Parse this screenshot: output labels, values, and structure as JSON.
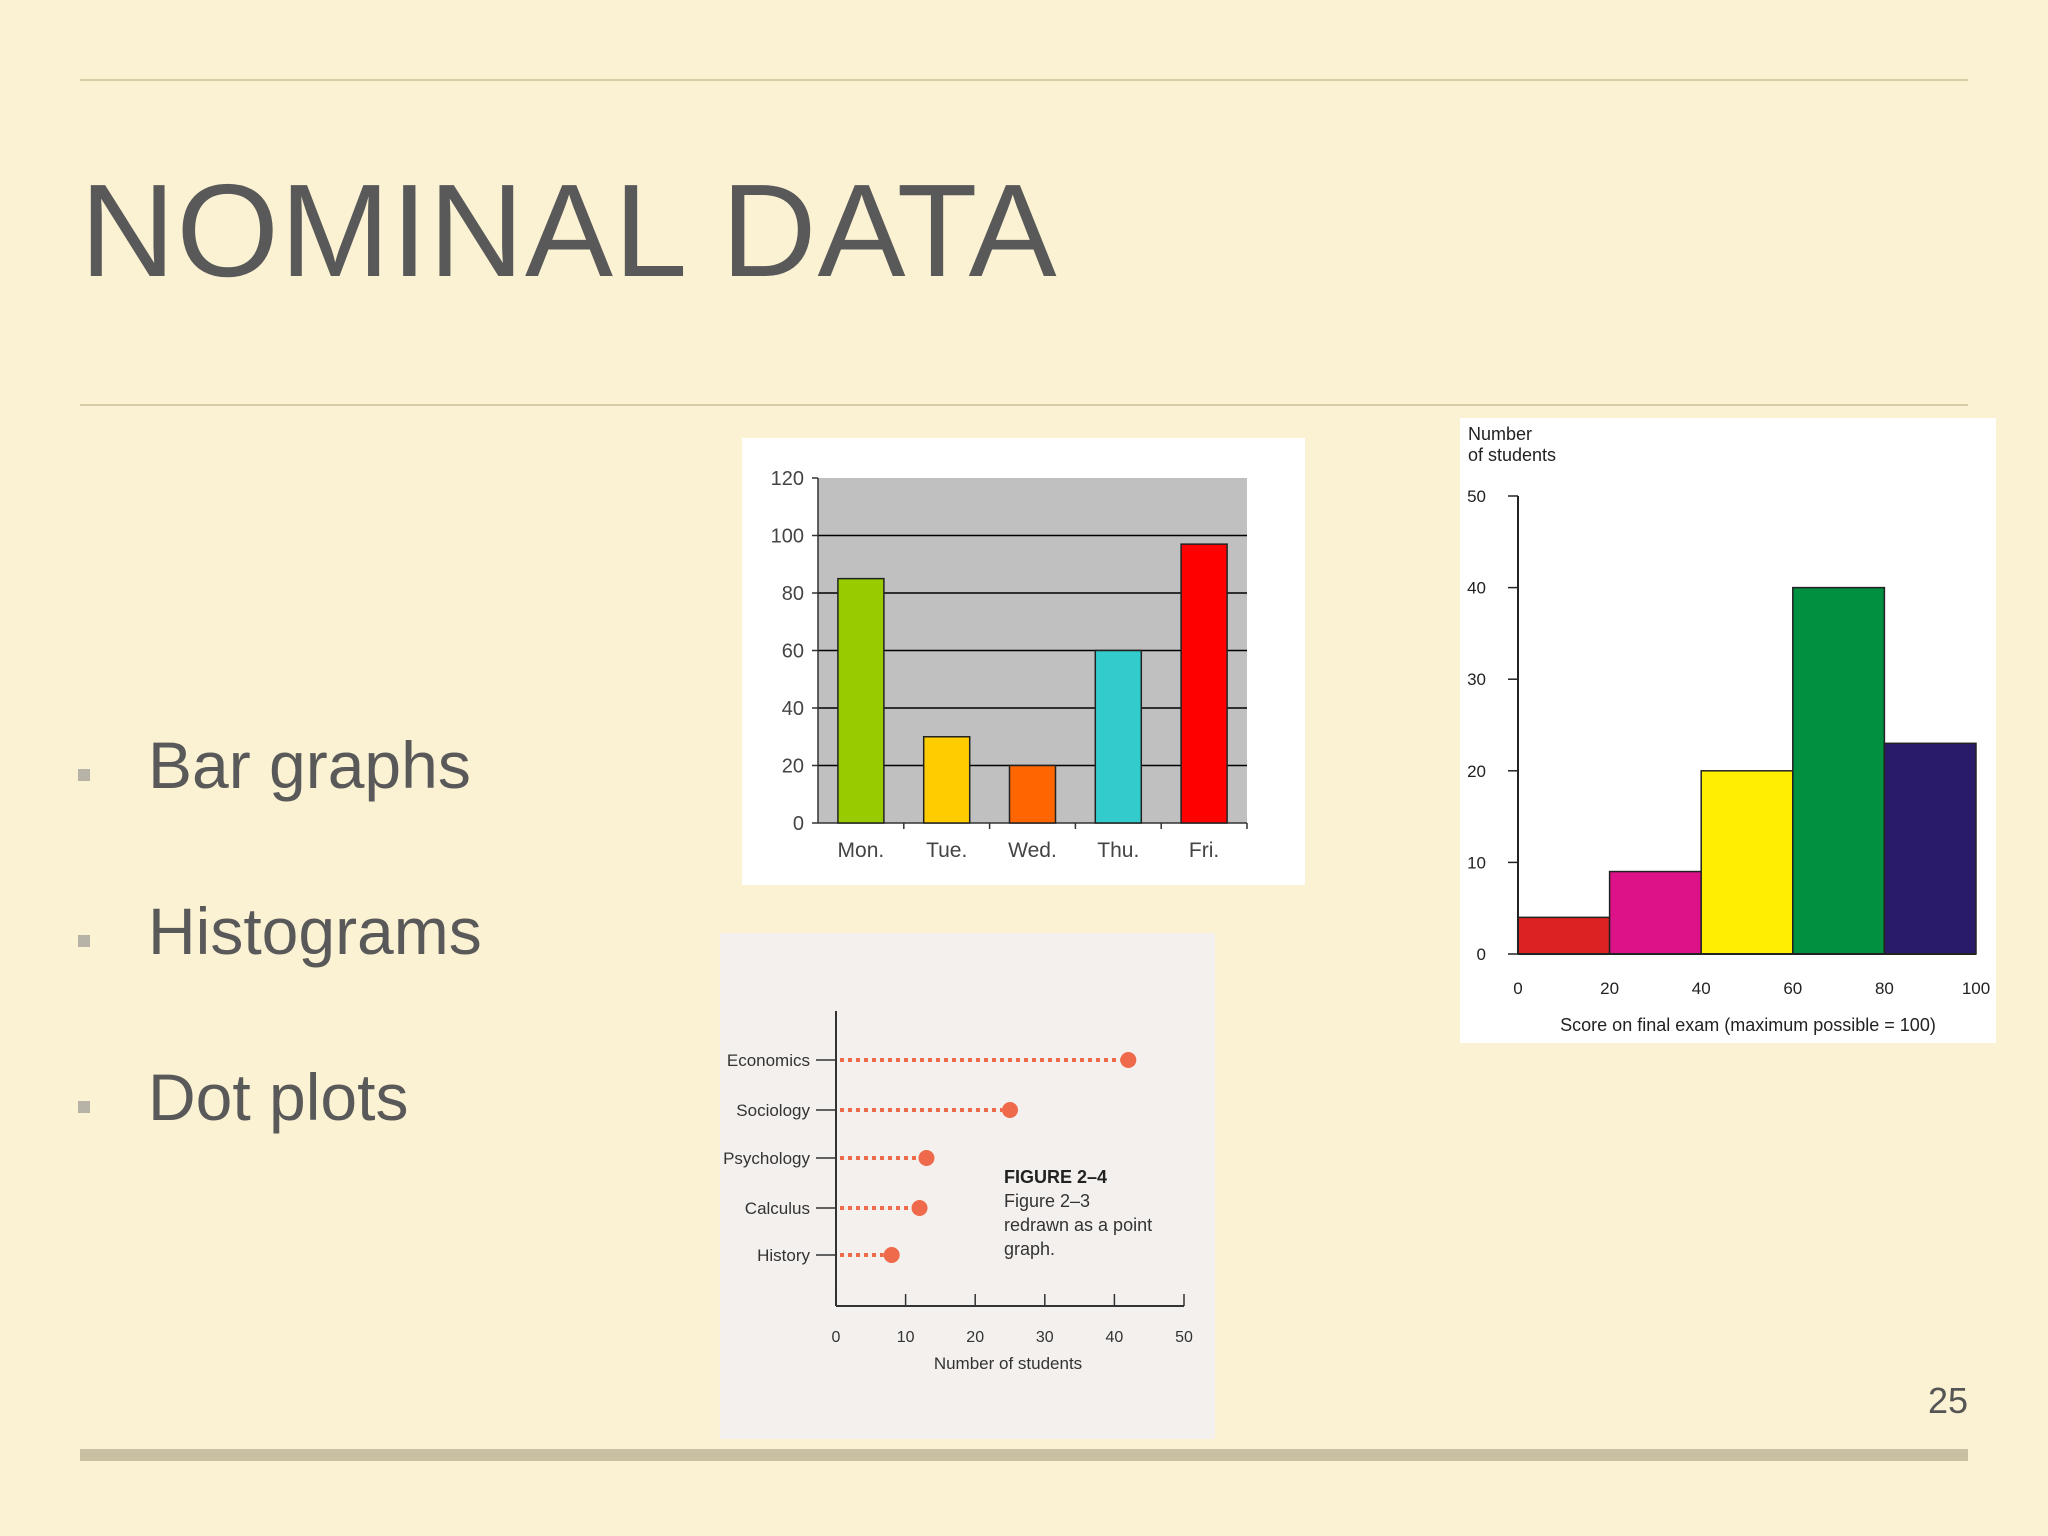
{
  "slide": {
    "title": "NOMINAL DATA",
    "bullets": [
      "Bar graphs",
      "Histograms",
      "Dot plots"
    ],
    "page_number": "25"
  },
  "colors": {
    "background": "#fbf2d3",
    "text": "#595959"
  },
  "chart_data": [
    {
      "type": "bar",
      "categories": [
        "Mon.",
        "Tue.",
        "Wed.",
        "Thu.",
        "Fri."
      ],
      "values": [
        85,
        30,
        20,
        60,
        97
      ],
      "colors": [
        "#99cc00",
        "#ffcc00",
        "#ff6600",
        "#33cccc",
        "#ff0000"
      ],
      "ylim": [
        0,
        120
      ],
      "yticks": [
        0,
        20,
        40,
        60,
        80,
        100,
        120
      ],
      "grid": true
    },
    {
      "type": "bar",
      "subtype": "histogram",
      "bins": [
        [
          0,
          20
        ],
        [
          20,
          40
        ],
        [
          40,
          60
        ],
        [
          60,
          80
        ],
        [
          80,
          100
        ]
      ],
      "values": [
        4,
        9,
        20,
        40,
        23
      ],
      "colors": [
        "#dd2222",
        "#dd1188",
        "#ffee00",
        "#009040",
        "#2a1a6a"
      ],
      "ylim": [
        0,
        50
      ],
      "yticks": [
        0,
        10,
        20,
        30,
        40,
        50
      ],
      "xticks": [
        0,
        20,
        40,
        60,
        80,
        100
      ],
      "ylabel": [
        "Number",
        "of students"
      ],
      "xlabel": "Score on final exam (maximum possible = 100)"
    },
    {
      "type": "scatter",
      "subtype": "dot plot",
      "categories": [
        "Economics",
        "Sociology",
        "Psychology",
        "Calculus",
        "History"
      ],
      "values": [
        42,
        25,
        13,
        12,
        8
      ],
      "xlim": [
        0,
        50
      ],
      "xticks": [
        0,
        10,
        20,
        30,
        40,
        50
      ],
      "xlabel": "Number of students",
      "caption": {
        "heading": "FIGURE 2–4",
        "lines": [
          "Figure 2–3",
          "redrawn as a point",
          "graph."
        ]
      }
    }
  ]
}
